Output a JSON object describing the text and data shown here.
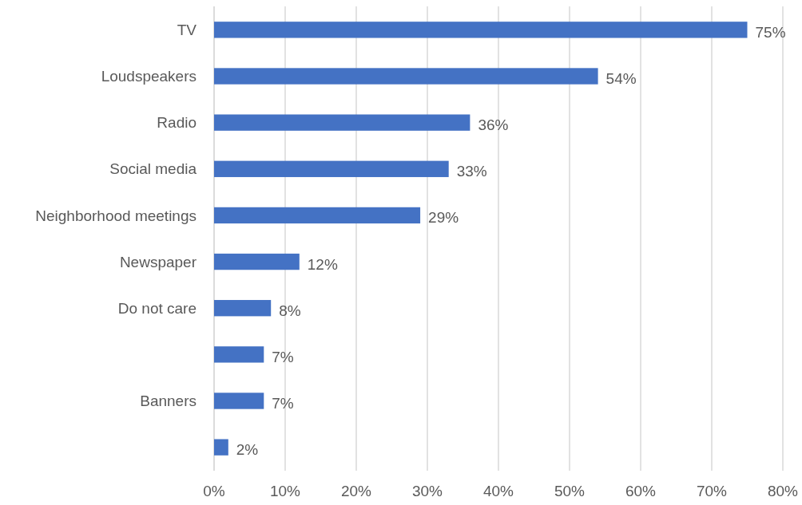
{
  "chart_data": {
    "type": "bar",
    "orientation": "horizontal",
    "categories": [
      "TV",
      "Loudspeakers",
      "Radio",
      "Social media",
      "Neighborhood meetings",
      "Newspaper",
      "Do not care",
      null,
      "Banners",
      null
    ],
    "values": [
      75,
      54,
      36,
      33,
      29,
      12,
      8,
      7,
      7,
      2
    ],
    "value_labels": [
      "75%",
      "54%",
      "36%",
      "33%",
      "29%",
      "12%",
      "8%",
      "7%",
      "7%",
      "2%"
    ],
    "color": "#4472c4",
    "xlim": [
      0,
      80
    ],
    "xticks": [
      {
        "value": 0,
        "label": "0%"
      },
      {
        "value": 10,
        "label": "10%"
      },
      {
        "value": 20,
        "label": "20%"
      },
      {
        "value": 30,
        "label": "30%"
      },
      {
        "value": 40,
        "label": "40%"
      },
      {
        "value": 50,
        "label": "50%"
      },
      {
        "value": 60,
        "label": "60%"
      },
      {
        "value": 70,
        "label": "70%"
      },
      {
        "value": 80,
        "label": "80%"
      }
    ],
    "grid": "x"
  }
}
